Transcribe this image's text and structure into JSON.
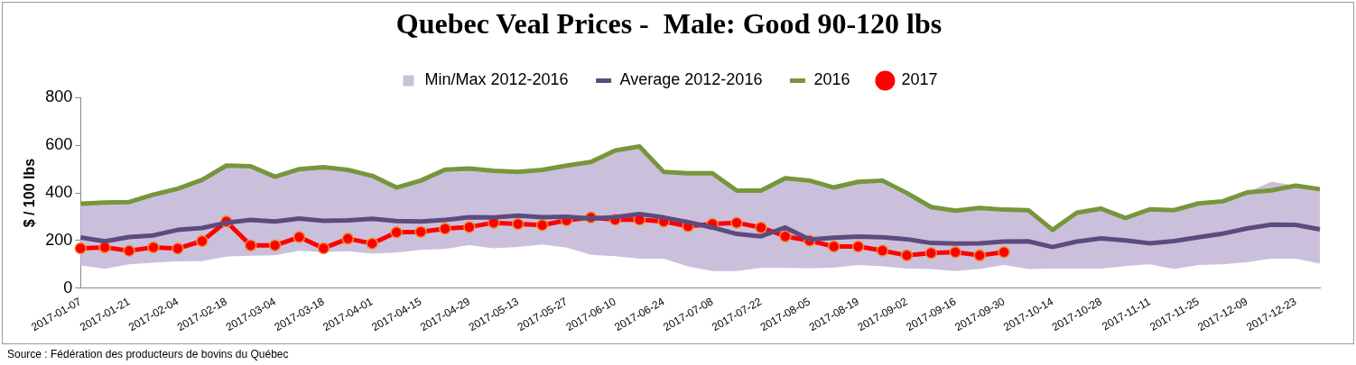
{
  "chart_data": {
    "type": "line",
    "title": "Quebec Veal Prices -  Male: Good 90-120 lbs",
    "ylabel": "$ / 100 lbs",
    "annotations": [
      "Source : Fédération des producteurs de bovins du Québec"
    ],
    "categories": [
      "2017-01-07",
      null,
      "2017-01-21",
      null,
      "2017-02-04",
      null,
      "2017-02-18",
      null,
      "2017-03-04",
      null,
      "2017-03-18",
      null,
      "2017-04-01",
      null,
      "2017-04-15",
      null,
      "2017-04-29",
      null,
      "2017-05-13",
      null,
      "2017-05-27",
      null,
      "2017-06-10",
      null,
      "2017-06-24",
      null,
      "2017-07-08",
      null,
      "2017-07-22",
      null,
      "2017-08-05",
      null,
      "2017-08-19",
      null,
      "2017-09-02",
      null,
      "2017-09-16",
      null,
      "2017-09-30",
      null,
      "2017-10-14",
      null,
      "2017-10-28",
      null,
      "2017-11-11",
      null,
      "2017-11-25",
      null,
      "2017-12-09",
      null,
      "2017-12-23",
      null
    ],
    "ylim": [
      0,
      800
    ],
    "yticks": [
      0,
      200,
      400,
      600,
      800
    ],
    "grid": false,
    "legend": "top",
    "series": [
      {
        "name": "Min/Max 2012-2016",
        "type": "area",
        "color": "#cbc0dc",
        "marker": "none",
        "lower": [
          96,
          82,
          101,
          107,
          113,
          114,
          133,
          137,
          138,
          157,
          152,
          155,
          145,
          150,
          161,
          165,
          181,
          168,
          173,
          184,
          171,
          140,
          135,
          124,
          124,
          91,
          72,
          72,
          85,
          85,
          84,
          86,
          98,
          92,
          83,
          81,
          72,
          81,
          98,
          81,
          83,
          83,
          83,
          93,
          101,
          81,
          98,
          101,
          109,
          124,
          124,
          103
        ],
        "values": [
          null,
          null,
          null,
          null,
          null,
          null,
          null,
          null,
          null,
          null,
          null,
          null,
          null,
          null,
          null,
          null,
          null,
          null,
          null,
          null,
          null,
          null,
          null,
          null,
          null,
          null,
          null,
          null,
          null,
          null,
          null,
          null,
          null,
          null,
          null,
          null,
          null,
          null,
          null,
          null,
          null,
          null,
          null,
          null,
          null,
          null,
          null,
          null,
          null,
          null,
          null,
          null
        ],
        "upper": [
          355,
          360,
          362,
          393,
          418,
          455,
          515,
          512,
          468,
          500,
          508,
          497,
          472,
          423,
          452,
          498,
          503,
          493,
          488,
          497,
          515,
          530,
          578,
          595,
          488,
          483,
          483,
          410,
          410,
          462,
          452,
          423,
          447,
          452,
          400,
          341,
          326,
          337,
          330,
          328,
          245,
          317,
          334,
          295,
          331,
          328,
          356,
          365,
          402,
          448,
          431,
          416
        ]
      },
      {
        "name": "Average 2012-2016",
        "type": "line",
        "color": "#5e4a7e",
        "marker": "none",
        "values": [
          213,
          197,
          215,
          222,
          245,
          253,
          275,
          287,
          280,
          293,
          283,
          285,
          292,
          282,
          280,
          287,
          298,
          297,
          305,
          298,
          300,
          293,
          298,
          312,
          297,
          278,
          255,
          228,
          218,
          255,
          205,
          212,
          217,
          214,
          206,
          190,
          188,
          189,
          196,
          197,
          173,
          196,
          209,
          201,
          189,
          198,
          214,
          229,
          251,
          267,
          266,
          247
        ]
      },
      {
        "name": "2016",
        "type": "line",
        "color": "#77963b",
        "marker": "none",
        "values": [
          355,
          360,
          362,
          393,
          418,
          455,
          515,
          512,
          468,
          500,
          508,
          497,
          472,
          423,
          452,
          498,
          503,
          493,
          488,
          497,
          515,
          530,
          578,
          595,
          488,
          483,
          483,
          410,
          410,
          462,
          452,
          423,
          447,
          452,
          400,
          341,
          326,
          337,
          330,
          328,
          245,
          317,
          334,
          295,
          331,
          328,
          356,
          365,
          402,
          411,
          431,
          416
        ]
      },
      {
        "name": "2017",
        "type": "line",
        "color": "#ff0000",
        "marker": "circle",
        "values": [
          168,
          172,
          157,
          172,
          167,
          198,
          280,
          180,
          180,
          215,
          168,
          208,
          188,
          235,
          237,
          250,
          257,
          275,
          270,
          265,
          285,
          297,
          288,
          288,
          280,
          260,
          270,
          275,
          255,
          218,
          200,
          175,
          175,
          158,
          138,
          148,
          152,
          138,
          152,
          null,
          null,
          null,
          null,
          null,
          null,
          null,
          null,
          null,
          null,
          null,
          null,
          null
        ]
      }
    ]
  }
}
